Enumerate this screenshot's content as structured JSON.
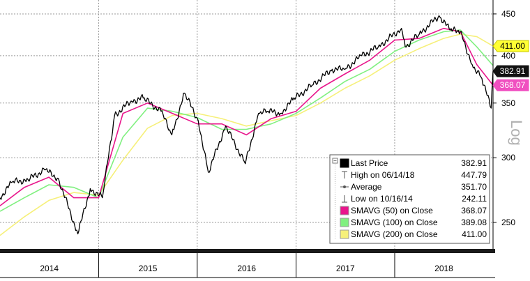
{
  "chart_data": {
    "type": "line",
    "yscale": "log",
    "ylabel": "Log",
    "ylim": [
      232,
      468
    ],
    "y_ticks": [
      250,
      300,
      350,
      400,
      450
    ],
    "x_ticks": [
      "2014",
      "2015",
      "2016",
      "2017",
      "2018"
    ],
    "x_range": [
      "2014-01-01",
      "2018-12-31"
    ],
    "grid": true,
    "legend_position": "bottom-right",
    "series": [
      {
        "name": "Last Price",
        "color": "#000000",
        "x": [
          "2014-01-01",
          "2014-02-15",
          "2014-04-15",
          "2014-06-15",
          "2014-08-05",
          "2014-10-16",
          "2014-12-01",
          "2015-01-15",
          "2015-03-01",
          "2015-05-01",
          "2015-06-15",
          "2015-08-20",
          "2015-09-29",
          "2015-11-15",
          "2016-01-05",
          "2016-02-11",
          "2016-04-15",
          "2016-06-27",
          "2016-08-15",
          "2016-09-20",
          "2016-11-04",
          "2016-12-20",
          "2017-03-01",
          "2017-05-15",
          "2017-07-01",
          "2017-09-01",
          "2017-11-01",
          "2018-01-26",
          "2018-02-09",
          "2018-04-02",
          "2018-06-14",
          "2018-07-25",
          "2018-09-01",
          "2018-10-15",
          "2018-11-20",
          "2018-12-24",
          "2018-12-31"
        ],
        "values": [
          268,
          280,
          282,
          290,
          283,
          242,
          275,
          268,
          338,
          352,
          355,
          342,
          320,
          360,
          333,
          288,
          328,
          295,
          340,
          342,
          340,
          353,
          368,
          385,
          385,
          400,
          410,
          432,
          410,
          425,
          447.79,
          430,
          428,
          390,
          375,
          345,
          382.91
        ]
      },
      {
        "name": "SMAVG (50) on Close",
        "color": "#e8168c",
        "x": [
          "2014-01-01",
          "2014-04-01",
          "2014-07-01",
          "2014-10-01",
          "2015-01-01",
          "2015-04-01",
          "2015-07-01",
          "2015-10-01",
          "2016-01-01",
          "2016-04-01",
          "2016-07-01",
          "2016-10-01",
          "2017-01-01",
          "2017-04-01",
          "2017-07-01",
          "2017-10-01",
          "2018-01-01",
          "2018-04-01",
          "2018-07-01",
          "2018-09-01",
          "2018-11-01",
          "2018-12-31"
        ],
        "values": [
          262,
          276,
          284,
          268,
          268,
          340,
          350,
          340,
          330,
          330,
          320,
          335,
          342,
          365,
          380,
          395,
          418,
          420,
          432,
          428,
          390,
          368.07
        ]
      },
      {
        "name": "SMAVG (100) on Close",
        "color": "#80f080",
        "x": [
          "2014-01-01",
          "2014-04-01",
          "2014-07-01",
          "2014-10-01",
          "2015-01-01",
          "2015-04-01",
          "2015-07-01",
          "2015-10-01",
          "2016-01-01",
          "2016-04-01",
          "2016-07-01",
          "2016-10-01",
          "2017-01-01",
          "2017-04-01",
          "2017-07-01",
          "2017-10-01",
          "2018-01-01",
          "2018-04-01",
          "2018-07-01",
          "2018-09-01",
          "2018-11-01",
          "2018-12-31"
        ],
        "values": [
          258,
          268,
          278,
          276,
          268,
          318,
          345,
          342,
          336,
          325,
          325,
          330,
          340,
          355,
          372,
          385,
          405,
          418,
          428,
          430,
          410,
          389.08
        ]
      },
      {
        "name": "SMAVG (200) on Close",
        "color": "#f6f07a",
        "x": [
          "2014-01-01",
          "2014-04-01",
          "2014-07-01",
          "2014-10-01",
          "2015-01-01",
          "2015-04-01",
          "2015-07-01",
          "2015-10-01",
          "2016-01-01",
          "2016-04-01",
          "2016-07-01",
          "2016-10-01",
          "2017-01-01",
          "2017-04-01",
          "2017-07-01",
          "2017-10-01",
          "2018-01-01",
          "2018-04-01",
          "2018-07-01",
          "2018-09-01",
          "2018-11-01",
          "2018-12-31"
        ],
        "values": [
          241,
          254,
          266,
          272,
          270,
          298,
          326,
          338,
          340,
          335,
          328,
          333,
          338,
          350,
          365,
          378,
          395,
          408,
          420,
          425,
          422,
          411.0
        ]
      }
    ],
    "tags": [
      {
        "label": "411.00",
        "value": 411.0,
        "bg": "#ffff33",
        "fg": "#000000"
      },
      {
        "label": "382.91",
        "value": 382.91,
        "bg": "#111111",
        "fg": "#ffffff"
      },
      {
        "label": "368.07",
        "value": 368.07,
        "bg": "#f04fc0",
        "fg": "#ffffff"
      }
    ],
    "legend": {
      "rows": [
        {
          "label": "Last Price",
          "value": "382.91",
          "swatch": "#000000",
          "kind": "box"
        },
        {
          "label": "High on 06/14/18",
          "value": "447.79",
          "swatch": "",
          "kind": "high"
        },
        {
          "label": "Average",
          "value": "351.70",
          "swatch": "",
          "kind": "avg"
        },
        {
          "label": "Low on 10/16/14",
          "value": "242.11",
          "swatch": "",
          "kind": "low"
        },
        {
          "label": "SMAVG (50)  on Close",
          "value": "368.07",
          "swatch": "#e8168c",
          "kind": "box"
        },
        {
          "label": "SMAVG (100)  on Close",
          "value": "389.08",
          "swatch": "#80f080",
          "kind": "box"
        },
        {
          "label": "SMAVG (200)  on Close",
          "value": "411.00",
          "swatch": "#f6f07a",
          "kind": "box"
        }
      ]
    }
  }
}
